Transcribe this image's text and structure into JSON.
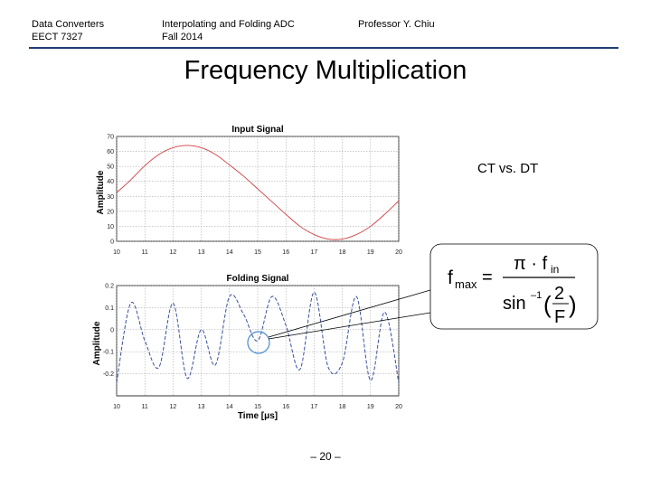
{
  "header": {
    "course_line1": "Data Converters",
    "course_line2": "EECT 7327",
    "topic_line1": "Interpolating and Folding ADC",
    "topic_line2": "Fall 2014",
    "author": "Professor Y. Chiu"
  },
  "slide": {
    "title": "Frequency Multiplication",
    "subtitle": "CT vs. DT",
    "page": "– 20 –"
  },
  "colors": {
    "header_rule": "#1f3f73",
    "input_curve": "#d04040",
    "folding_curve": "#3a4fa0",
    "marker": "#4a8ad0"
  },
  "formula": {
    "lhs": "f",
    "lhs_sub": "max",
    "equals": "=",
    "numerator": "π · f",
    "numerator_sub": "in",
    "denominator_fn": "sin",
    "denominator_sup": "–1",
    "frac_top": "2",
    "frac_bottom": "F"
  },
  "chart_data": [
    {
      "type": "line",
      "title": "Input Signal",
      "xlabel": "",
      "ylabel": "Amplitude",
      "xlim": [
        10,
        20
      ],
      "ylim": [
        0,
        70
      ],
      "xticks": [
        "10",
        "11",
        "12",
        "13",
        "14",
        "15",
        "16",
        "17",
        "18",
        "19",
        "20"
      ],
      "yticks": [
        "0",
        "10",
        "20",
        "30",
        "40",
        "50",
        "60",
        "70"
      ],
      "grid": true,
      "series": [
        {
          "x": [
            10,
            10.5,
            11,
            11.5,
            12,
            12.5,
            13,
            13.5,
            14,
            14.5,
            15,
            15.5,
            16,
            16.5,
            17,
            17.5,
            18,
            18.5,
            19,
            19.5,
            20
          ],
          "values": [
            32.5,
            41,
            50.5,
            58,
            62.5,
            64,
            62.5,
            58,
            51,
            43.5,
            35,
            26.5,
            18,
            10,
            4.5,
            1.5,
            1.5,
            4.5,
            10,
            18,
            27
          ]
        }
      ]
    },
    {
      "type": "line",
      "title": "Folding Signal",
      "xlabel": "Time [μs]",
      "ylabel": "Amplitude",
      "xlim": [
        10,
        20
      ],
      "ylim": [
        -0.3,
        0.2
      ],
      "xticks": [
        "10",
        "11",
        "12",
        "13",
        "14",
        "15",
        "16",
        "17",
        "18",
        "19",
        "20"
      ],
      "yticks": [
        "-0.2",
        "-0.1",
        "0",
        "0.1",
        "0.2"
      ],
      "grid": true,
      "series": [
        {
          "x": [
            10,
            10.5,
            11,
            11.5,
            12,
            12.5,
            13,
            13.5,
            14,
            14.5,
            15,
            15.5,
            16,
            16.5,
            17,
            17.5,
            18,
            18.5,
            19,
            19.5,
            20
          ],
          "values": [
            -0.24,
            0.12,
            -0.05,
            -0.17,
            0.12,
            -0.22,
            0.0,
            -0.16,
            0.15,
            0.07,
            -0.05,
            0.15,
            0.02,
            -0.18,
            0.17,
            -0.17,
            -0.15,
            0.15,
            -0.23,
            0.08,
            -0.24
          ]
        }
      ]
    }
  ]
}
